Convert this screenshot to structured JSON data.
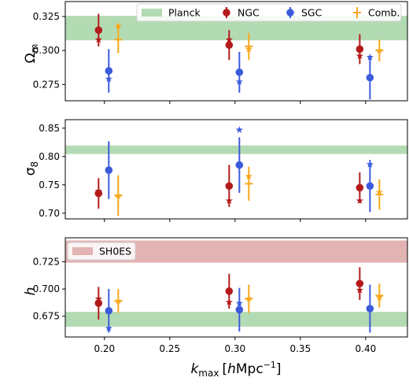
{
  "chart_data": [
    {
      "type": "scatter",
      "ylabel": "Ω_m",
      "ylabel_main": "Ω",
      "ylabel_sub": "m",
      "ylim": [
        0.263,
        0.336
      ],
      "yticks": [
        0.275,
        0.3,
        0.325
      ],
      "ytick_labels": [
        "0.275",
        "0.300",
        "0.325"
      ],
      "band": {
        "name": "Planck",
        "color": "#b3dbb3",
        "range": [
          0.3075,
          0.3255
        ]
      },
      "legend": {
        "position": "top",
        "entries": [
          {
            "label": "Planck",
            "kind": "band",
            "color": "#b3dbb3"
          },
          {
            "label": "NGC",
            "kind": "point",
            "color": "#b31b1b"
          },
          {
            "label": "SGC",
            "kind": "point",
            "color": "#3b5bdb"
          },
          {
            "label": "Comb.",
            "kind": "plus",
            "color": "#f7a81b"
          }
        ]
      },
      "series": [
        {
          "name": "NGC",
          "color": "#b31b1b",
          "points": [
            {
              "x": 0.2,
              "y": 0.315,
              "err": 0.012,
              "star": 0.308
            },
            {
              "x": 0.3,
              "y": 0.304,
              "err": 0.011,
              "star": 0.308
            },
            {
              "x": 0.4,
              "y": 0.301,
              "err": 0.011,
              "star": 0.296
            }
          ]
        },
        {
          "name": "SGC",
          "color": "#3b5bdb",
          "points": [
            {
              "x": 0.2,
              "y": 0.285,
              "err": 0.016,
              "star": 0.279
            },
            {
              "x": 0.3,
              "y": 0.284,
              "err": 0.015,
              "star": 0.277
            },
            {
              "x": 0.4,
              "y": 0.28,
              "err": 0.016,
              "star": 0.295
            }
          ]
        },
        {
          "name": "Comb.",
          "color": "#f7a81b",
          "points": [
            {
              "x": 0.2,
              "y": 0.308,
              "err": 0.01,
              "star": 0.318
            },
            {
              "x": 0.3,
              "y": 0.303,
              "err": 0.01,
              "star": 0.301
            },
            {
              "x": 0.4,
              "y": 0.3,
              "err": 0.008,
              "star": 0.3
            }
          ]
        }
      ]
    },
    {
      "type": "scatter",
      "ylabel": "σ_8",
      "ylabel_main": "σ",
      "ylabel_sub": "8",
      "ylim": [
        0.69,
        0.865
      ],
      "yticks": [
        0.7,
        0.75,
        0.8,
        0.85
      ],
      "ytick_labels": [
        "0.70",
        "0.75",
        "0.80",
        "0.85"
      ],
      "band": {
        "name": "Planck",
        "color": "#b3dbb3",
        "range": [
          0.8045,
          0.8195
        ]
      },
      "series": [
        {
          "name": "NGC",
          "color": "#b31b1b",
          "points": [
            {
              "x": 0.2,
              "y": 0.735,
              "err": 0.027,
              "star": 0.739
            },
            {
              "x": 0.3,
              "y": 0.748,
              "err": 0.037,
              "star": 0.722
            },
            {
              "x": 0.4,
              "y": 0.745,
              "err": 0.027,
              "star": 0.722
            }
          ]
        },
        {
          "name": "SGC",
          "color": "#3b5bdb",
          "points": [
            {
              "x": 0.2,
              "y": 0.776,
              "err": 0.051,
              "star": 0.775
            },
            {
              "x": 0.3,
              "y": 0.785,
              "err": 0.049,
              "star": 0.847
            },
            {
              "x": 0.4,
              "y": 0.748,
              "err": 0.046,
              "star": 0.786
            }
          ]
        },
        {
          "name": "Comb.",
          "color": "#f7a81b",
          "points": [
            {
              "x": 0.2,
              "y": 0.731,
              "err": 0.036,
              "star": 0.731
            },
            {
              "x": 0.3,
              "y": 0.752,
              "err": 0.03,
              "star": 0.765
            },
            {
              "x": 0.4,
              "y": 0.733,
              "err": 0.027,
              "star": 0.737
            }
          ]
        }
      ]
    },
    {
      "type": "scatter",
      "ylabel": "h",
      "ylabel_main": "h",
      "ylabel_sub": "",
      "xlabel": "k_max [hMpc^-1]",
      "xlabel_k": "k",
      "xlabel_sub": "max",
      "xlabel_open": "[",
      "xlabel_h": "h",
      "xlabel_unit": "Mpc",
      "xlabel_exp": "−1",
      "xlabel_close": "]",
      "ylim": [
        0.656,
        0.747
      ],
      "yticks": [
        0.675,
        0.7,
        0.725
      ],
      "ytick_labels": [
        "0.675",
        "0.700",
        "0.725"
      ],
      "xlim": [
        0.17,
        0.432
      ],
      "xticks": [
        0.2,
        0.25,
        0.3,
        0.35,
        0.4
      ],
      "xtick_labels": [
        "0.20",
        "0.25",
        "0.30",
        "0.35",
        "0.40"
      ],
      "band": {
        "name": "Planck",
        "color": "#b3dbb3",
        "range": [
          0.6655,
          0.679
        ]
      },
      "band2": {
        "name": "SH0ES",
        "color": "#e2b3b3",
        "range": [
          0.7242,
          0.7445
        ]
      },
      "legend": {
        "position": "top-left",
        "entries": [
          {
            "label": "SH0ES",
            "kind": "band",
            "color": "#e2b3b3"
          }
        ]
      },
      "series": [
        {
          "name": "NGC",
          "color": "#b31b1b",
          "points": [
            {
              "x": 0.2,
              "y": 0.687,
              "err": 0.015,
              "star": 0.691
            },
            {
              "x": 0.3,
              "y": 0.698,
              "err": 0.016,
              "star": 0.688
            },
            {
              "x": 0.4,
              "y": 0.705,
              "err": 0.015,
              "star": 0.699
            }
          ]
        },
        {
          "name": "SGC",
          "color": "#3b5bdb",
          "points": [
            {
              "x": 0.2,
              "y": 0.68,
              "err": 0.02,
              "star": 0.664
            },
            {
              "x": 0.3,
              "y": 0.681,
              "err": 0.02,
              "star": 0.687
            },
            {
              "x": 0.4,
              "y": 0.682,
              "err": 0.022,
              "star": 0.683
            }
          ]
        },
        {
          "name": "Comb.",
          "color": "#f7a81b",
          "points": [
            {
              "x": 0.2,
              "y": 0.689,
              "err": 0.011,
              "star": 0.689
            },
            {
              "x": 0.3,
              "y": 0.691,
              "err": 0.013,
              "star": 0.691
            },
            {
              "x": 0.4,
              "y": 0.694,
              "err": 0.011,
              "star": 0.692
            }
          ]
        }
      ]
    }
  ]
}
